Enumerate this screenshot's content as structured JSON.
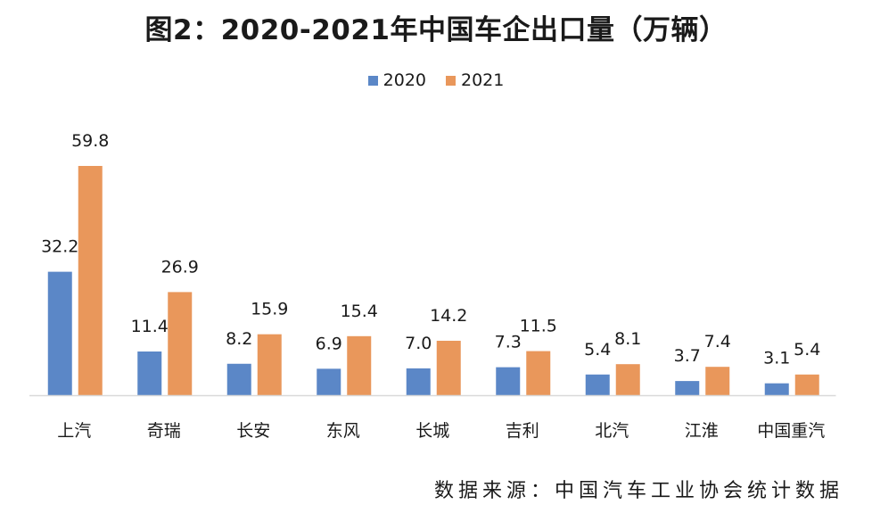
{
  "colors": {
    "2020": "#5b87c7",
    "2021": "#e9975b",
    "axis": "#d9d9d9"
  },
  "chart_data": {
    "type": "bar",
    "title": "图2：2020-2021年中国车企出口量（万辆）",
    "categories": [
      "上汽",
      "奇瑞",
      "长安",
      "东风",
      "长城",
      "吉利",
      "北汽",
      "江淮",
      "中国重汽"
    ],
    "series": [
      {
        "name": "2020",
        "values": [
          32.2,
          11.4,
          8.2,
          6.9,
          7.0,
          7.3,
          5.4,
          3.7,
          3.1
        ]
      },
      {
        "name": "2021",
        "values": [
          59.8,
          26.9,
          15.9,
          15.4,
          14.2,
          11.5,
          8.1,
          7.4,
          5.4
        ]
      }
    ],
    "value_labels": {
      "2020": [
        "32.2",
        "11.4",
        "8.2",
        "6.9",
        "7.0",
        "7.3",
        "5.4",
        "3.7",
        "3.1"
      ],
      "2021": [
        "59.8",
        "26.9",
        "15.9",
        "15.4",
        "14.2",
        "11.5",
        "8.1",
        "7.4",
        "5.4"
      ]
    },
    "ylim": [
      0,
      60
    ],
    "grid": false,
    "legend_position": "top-center"
  },
  "source": "数据来源：中国汽车工业协会统计数据"
}
